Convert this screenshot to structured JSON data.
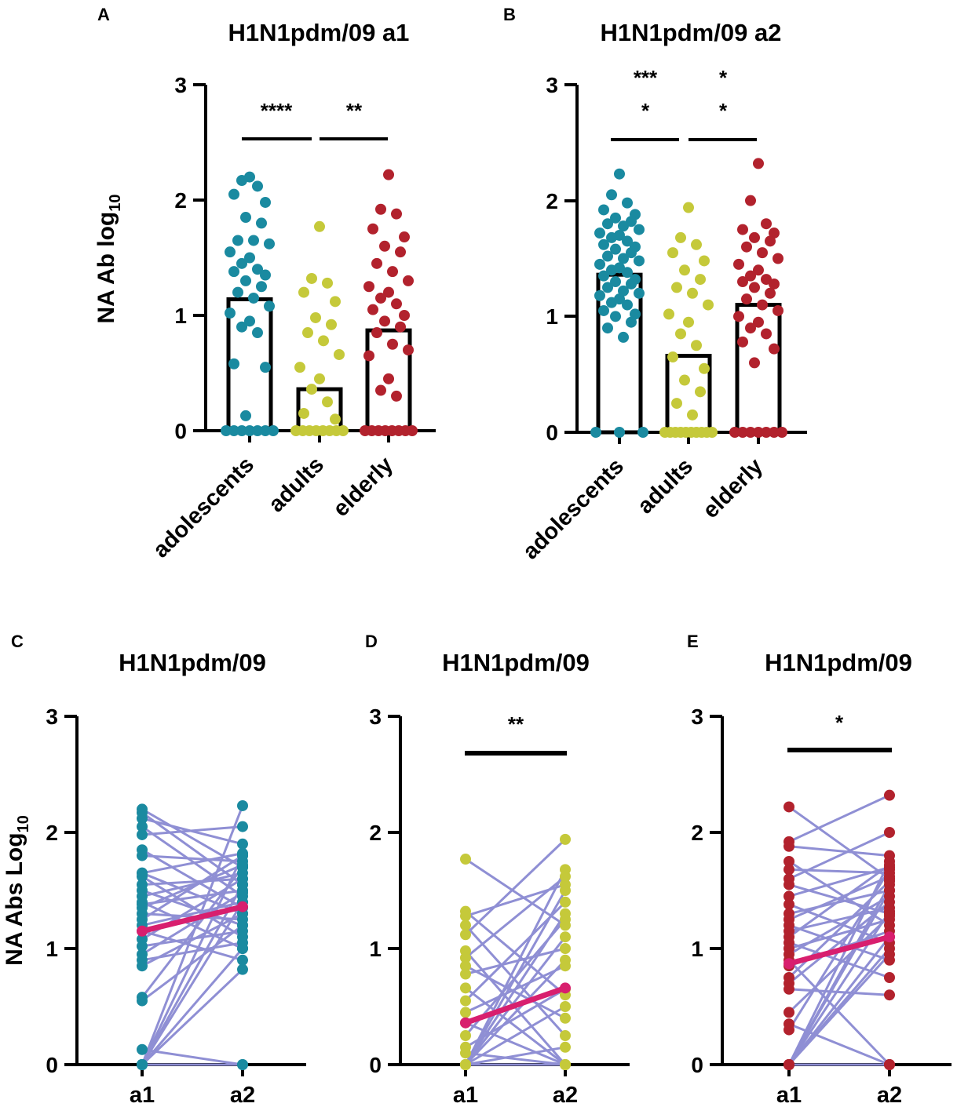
{
  "colors": {
    "adolescents": "#1a8aa0",
    "adults": "#c5c93a",
    "elderly": "#b2222d",
    "pair_line": "#8f8fd4",
    "mean_line": "#d81f6e",
    "axis": "#000000"
  },
  "chart_data": [
    {
      "panel": "A",
      "type": "bar",
      "title": "H1N1pdm/09 a1",
      "ylabel": "NA Ab log",
      "ylabel_sub": "10",
      "ylim": [
        0,
        3
      ],
      "yticks": [
        "0",
        "1",
        "2",
        "3"
      ],
      "categories": [
        "adolescents",
        "adults",
        "elderly"
      ],
      "values": [
        1.14,
        0.36,
        0.87
      ],
      "points": [
        [
          2.2,
          2.17,
          2.12,
          2.05,
          1.98,
          1.85,
          1.8,
          1.65,
          1.65,
          1.62,
          1.55,
          1.5,
          1.45,
          1.4,
          1.38,
          1.35,
          1.3,
          1.25,
          1.2,
          1.15,
          1.08,
          1.02,
          0.95,
          0.9,
          0.85,
          0.58,
          0.55,
          0.13,
          0,
          0,
          0,
          0,
          0,
          0,
          0
        ],
        [
          1.77,
          1.32,
          1.28,
          1.2,
          1.12,
          0.98,
          0.92,
          0.85,
          0.78,
          0.66,
          0.55,
          0.45,
          0.36,
          0.25,
          0.15,
          0.1,
          0,
          0,
          0,
          0,
          0,
          0,
          0,
          0
        ],
        [
          2.22,
          1.92,
          1.88,
          1.75,
          1.68,
          1.6,
          1.55,
          1.45,
          1.38,
          1.3,
          1.25,
          1.2,
          1.15,
          1.1,
          1.05,
          1.0,
          0.95,
          0.9,
          0.85,
          0.75,
          0.7,
          0.65,
          0.45,
          0.35,
          0.3,
          0,
          0,
          0,
          0,
          0,
          0,
          0,
          0
        ]
      ],
      "significance": [
        {
          "from": 0,
          "to": 1,
          "label": "****"
        },
        {
          "from": 1,
          "to": 2,
          "label": "**"
        }
      ]
    },
    {
      "panel": "B",
      "type": "bar",
      "title": "H1N1pdm/09 a2",
      "ylim": [
        0,
        3
      ],
      "yticks": [
        "0",
        "1",
        "2",
        "3"
      ],
      "categories": [
        "adolescents",
        "adults",
        "elderly"
      ],
      "values": [
        1.36,
        0.66,
        1.1
      ],
      "points": [
        [
          2.23,
          2.05,
          1.98,
          1.92,
          1.88,
          1.85,
          1.82,
          1.8,
          1.78,
          1.75,
          1.72,
          1.7,
          1.68,
          1.65,
          1.62,
          1.6,
          1.58,
          1.55,
          1.52,
          1.5,
          1.48,
          1.45,
          1.42,
          1.4,
          1.38,
          1.35,
          1.32,
          1.3,
          1.28,
          1.25,
          1.22,
          1.2,
          1.18,
          1.15,
          1.12,
          1.1,
          1.05,
          1.02,
          1.0,
          0.95,
          0.9,
          0.82,
          0,
          0,
          0
        ],
        [
          1.94,
          1.68,
          1.62,
          1.55,
          1.48,
          1.4,
          1.32,
          1.25,
          1.2,
          1.1,
          1.02,
          0.95,
          0.85,
          0.75,
          0.65,
          0.55,
          0.45,
          0.35,
          0.25,
          0.15,
          0,
          0,
          0,
          0,
          0,
          0,
          0,
          0,
          0,
          0
        ],
        [
          2.32,
          2.0,
          1.8,
          1.75,
          1.72,
          1.68,
          1.65,
          1.6,
          1.55,
          1.5,
          1.45,
          1.4,
          1.35,
          1.32,
          1.3,
          1.28,
          1.25,
          1.2,
          1.15,
          1.1,
          1.05,
          1.0,
          0.95,
          0.9,
          0.85,
          0.78,
          0.72,
          0.6,
          0,
          0,
          0,
          0,
          0,
          0,
          0
        ]
      ],
      "significance": [
        {
          "from": 0,
          "to": 1,
          "label": "***",
          "label2": "*"
        },
        {
          "from": 1,
          "to": 2,
          "label": "*",
          "label2": "*"
        }
      ]
    },
    {
      "panel": "C",
      "type": "line",
      "title": "H1N1pdm/09",
      "ylabel": "NA Abs Log",
      "ylabel_sub": "10",
      "ylim": [
        0,
        3
      ],
      "yticks": [
        "0",
        "1",
        "2",
        "3"
      ],
      "categories": [
        "a1",
        "a2"
      ],
      "group": "adolescents",
      "mean": [
        1.15,
        1.36
      ],
      "pairs": [
        [
          2.2,
          1.7
        ],
        [
          2.17,
          1.55
        ],
        [
          2.12,
          1.9
        ],
        [
          2.05,
          1.45
        ],
        [
          1.98,
          2.05
        ],
        [
          1.85,
          1.35
        ],
        [
          1.8,
          1.75
        ],
        [
          1.65,
          1.3
        ],
        [
          1.65,
          1.82
        ],
        [
          1.62,
          1.1
        ],
        [
          1.55,
          1.6
        ],
        [
          1.5,
          1.2
        ],
        [
          1.45,
          1.65
        ],
        [
          1.4,
          1.0
        ],
        [
          1.38,
          1.5
        ],
        [
          1.35,
          1.72
        ],
        [
          1.3,
          1.25
        ],
        [
          1.25,
          1.8
        ],
        [
          1.2,
          1.4
        ],
        [
          1.15,
          0.9
        ],
        [
          1.08,
          1.6
        ],
        [
          1.02,
          1.15
        ],
        [
          0.95,
          1.48
        ],
        [
          0.9,
          1.05
        ],
        [
          0.85,
          1.3
        ],
        [
          0.58,
          1.7
        ],
        [
          0.55,
          1.2
        ],
        [
          0.13,
          0.0
        ],
        [
          0.0,
          1.55
        ],
        [
          0.0,
          1.4
        ],
        [
          0.0,
          0.82
        ],
        [
          0.0,
          1.8
        ],
        [
          0.0,
          1.0
        ],
        [
          0.0,
          2.23
        ],
        [
          0.0,
          0.0
        ]
      ]
    },
    {
      "panel": "D",
      "type": "line",
      "title": "H1N1pdm/09",
      "ylim": [
        0,
        3
      ],
      "yticks": [
        "0",
        "1",
        "2",
        "3"
      ],
      "categories": [
        "a1",
        "a2"
      ],
      "group": "adults",
      "mean": [
        0.36,
        0.66
      ],
      "significance": [
        {
          "from": 0,
          "to": 1,
          "label": "**"
        }
      ],
      "pairs": [
        [
          1.77,
          1.2
        ],
        [
          1.32,
          0.6
        ],
        [
          1.28,
          1.55
        ],
        [
          1.2,
          0.25
        ],
        [
          1.12,
          1.94
        ],
        [
          0.98,
          0.0
        ],
        [
          0.92,
          1.62
        ],
        [
          0.85,
          0.4
        ],
        [
          0.78,
          1.0
        ],
        [
          0.66,
          0.0
        ],
        [
          0.55,
          1.4
        ],
        [
          0.45,
          0.85
        ],
        [
          0.36,
          0.0
        ],
        [
          0.25,
          1.25
        ],
        [
          0.15,
          0.65
        ],
        [
          0.1,
          0.0
        ],
        [
          0.0,
          1.68
        ],
        [
          0.0,
          0.5
        ],
        [
          0.0,
          1.3
        ],
        [
          0.0,
          0.0
        ],
        [
          0.0,
          0.9
        ],
        [
          0.0,
          1.1
        ],
        [
          0.0,
          0.15
        ],
        [
          0.0,
          1.5
        ]
      ]
    },
    {
      "panel": "E",
      "type": "line",
      "title": "H1N1pdm/09",
      "ylim": [
        0,
        3
      ],
      "yticks": [
        "0",
        "1",
        "2",
        "3"
      ],
      "categories": [
        "a1",
        "a2"
      ],
      "group": "elderly",
      "mean": [
        0.87,
        1.1
      ],
      "significance": [
        {
          "from": 0,
          "to": 1,
          "label": "*"
        }
      ],
      "pairs": [
        [
          2.22,
          1.6
        ],
        [
          1.92,
          2.32
        ],
        [
          1.88,
          1.8
        ],
        [
          1.75,
          1.2
        ],
        [
          1.68,
          1.65
        ],
        [
          1.6,
          2.0
        ],
        [
          1.55,
          1.3
        ],
        [
          1.45,
          1.7
        ],
        [
          1.38,
          1.05
        ],
        [
          1.3,
          1.5
        ],
        [
          1.25,
          1.62
        ],
        [
          1.2,
          0.9
        ],
        [
          1.15,
          1.35
        ],
        [
          1.1,
          1.72
        ],
        [
          1.05,
          0.75
        ],
        [
          1.0,
          1.25
        ],
        [
          0.95,
          1.45
        ],
        [
          0.9,
          0.0
        ],
        [
          0.85,
          1.15
        ],
        [
          0.75,
          1.58
        ],
        [
          0.7,
          1.4
        ],
        [
          0.65,
          0.6
        ],
        [
          0.45,
          1.28
        ],
        [
          0.35,
          0.0
        ],
        [
          0.3,
          1.68
        ],
        [
          0.0,
          1.0
        ],
        [
          0.0,
          1.55
        ],
        [
          0.0,
          1.32
        ],
        [
          0.0,
          0.0
        ],
        [
          0.0,
          1.1
        ],
        [
          0.0,
          1.75
        ],
        [
          0.0,
          0.95
        ],
        [
          0.0,
          1.5
        ]
      ]
    }
  ]
}
